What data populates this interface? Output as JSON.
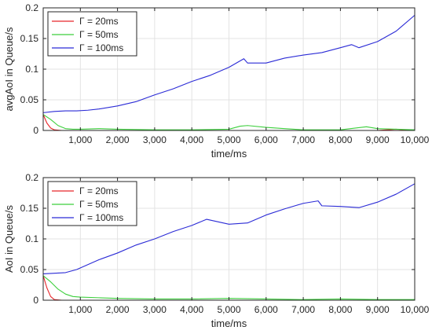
{
  "chart_data": [
    {
      "type": "line",
      "title": "",
      "xlabel": "time/ms",
      "ylabel": "avgAoI in Queue/s",
      "xlim": [
        0,
        10000
      ],
      "ylim": [
        0,
        0.2
      ],
      "xticks": [
        1000,
        2000,
        3000,
        4000,
        5000,
        6000,
        7000,
        8000,
        9000,
        10000
      ],
      "xtick_labels": [
        "1,000",
        "2,000",
        "3,000",
        "4,000",
        "5,000",
        "6,000",
        "7,000",
        "8,000",
        "9,000",
        "10,000"
      ],
      "yticks": [
        0,
        0.05,
        0.1,
        0.15,
        0.2
      ],
      "ytick_labels": [
        "0",
        "0.05",
        "0.1",
        "0.15",
        "0.2"
      ],
      "grid": true,
      "legend_position": "top-left",
      "series": [
        {
          "name": "Γ = 20ms",
          "color": "#e8262a",
          "x": [
            0,
            100,
            200,
            300,
            500,
            1000,
            2000,
            3000,
            4000,
            5000,
            6000,
            7000,
            8000,
            9000,
            9500,
            10000
          ],
          "y": [
            0.026,
            0.012,
            0.004,
            0.001,
            0.0,
            0.0,
            0.0,
            0.0,
            0.0,
            0.0,
            0.0,
            0.0,
            0.0,
            0.0,
            0.002,
            0.0
          ]
        },
        {
          "name": "Γ = 50ms",
          "color": "#3ccf3c",
          "x": [
            0,
            200,
            400,
            600,
            800,
            1000,
            1500,
            2000,
            3000,
            4000,
            5000,
            5300,
            5500,
            6000,
            6500,
            7000,
            8000,
            8700,
            9000,
            10000
          ],
          "y": [
            0.026,
            0.018,
            0.008,
            0.003,
            0.002,
            0.002,
            0.003,
            0.002,
            0.001,
            0.001,
            0.002,
            0.007,
            0.008,
            0.005,
            0.003,
            0.001,
            0.001,
            0.006,
            0.003,
            0.001
          ]
        },
        {
          "name": "Γ = 100ms",
          "color": "#2b2bd6",
          "x": [
            0,
            300,
            600,
            900,
            1200,
            1500,
            2000,
            2500,
            3000,
            3500,
            4000,
            4500,
            5000,
            5400,
            5500,
            6000,
            6500,
            7000,
            7500,
            8000,
            8300,
            8500,
            9000,
            9500,
            10000
          ],
          "y": [
            0.029,
            0.031,
            0.032,
            0.032,
            0.033,
            0.035,
            0.04,
            0.047,
            0.058,
            0.068,
            0.08,
            0.09,
            0.103,
            0.117,
            0.11,
            0.11,
            0.118,
            0.123,
            0.127,
            0.135,
            0.14,
            0.135,
            0.145,
            0.162,
            0.188
          ]
        }
      ]
    },
    {
      "type": "line",
      "title": "",
      "xlabel": "time/ms",
      "ylabel": "AoI in Queue/s",
      "xlim": [
        0,
        10000
      ],
      "ylim": [
        0,
        0.2
      ],
      "xticks": [
        1000,
        2000,
        3000,
        4000,
        5000,
        6000,
        7000,
        8000,
        9000,
        10000
      ],
      "xtick_labels": [
        "1,000",
        "2,000",
        "3,000",
        "4,000",
        "5,000",
        "6,000",
        "7,000",
        "8,000",
        "9,000",
        "10,000"
      ],
      "yticks": [
        0,
        0.05,
        0.1,
        0.15,
        0.2
      ],
      "ytick_labels": [
        "0",
        "0.05",
        "0.1",
        "0.15",
        "0.2"
      ],
      "grid": true,
      "legend_position": "top-left",
      "series": [
        {
          "name": "Γ = 20ms",
          "color": "#e8262a",
          "x": [
            0,
            100,
            200,
            300,
            500,
            1000,
            2000,
            3000,
            4000,
            5000,
            6000,
            7000,
            8000,
            9000,
            10000
          ],
          "y": [
            0.04,
            0.02,
            0.006,
            0.001,
            0.0,
            0.0,
            0.0,
            0.0,
            0.0,
            0.0,
            0.0,
            0.0,
            0.0,
            0.0,
            0.0
          ]
        },
        {
          "name": "Γ = 50ms",
          "color": "#3ccf3c",
          "x": [
            0,
            200,
            400,
            600,
            800,
            1000,
            1500,
            2000,
            3000,
            4000,
            5000,
            6000,
            7000,
            8000,
            9000,
            10000
          ],
          "y": [
            0.04,
            0.03,
            0.018,
            0.01,
            0.006,
            0.005,
            0.004,
            0.003,
            0.002,
            0.002,
            0.003,
            0.002,
            0.001,
            0.002,
            0.001,
            0.001
          ]
        },
        {
          "name": "Γ = 100ms",
          "color": "#2b2bd6",
          "x": [
            0,
            300,
            600,
            900,
            1200,
            1500,
            2000,
            2500,
            3000,
            3500,
            4000,
            4400,
            5000,
            5500,
            6000,
            6500,
            7000,
            7400,
            7500,
            8000,
            8500,
            9000,
            9500,
            10000
          ],
          "y": [
            0.043,
            0.044,
            0.045,
            0.05,
            0.058,
            0.066,
            0.077,
            0.09,
            0.1,
            0.112,
            0.122,
            0.132,
            0.124,
            0.126,
            0.139,
            0.149,
            0.158,
            0.162,
            0.154,
            0.153,
            0.151,
            0.16,
            0.173,
            0.19
          ]
        }
      ]
    }
  ]
}
